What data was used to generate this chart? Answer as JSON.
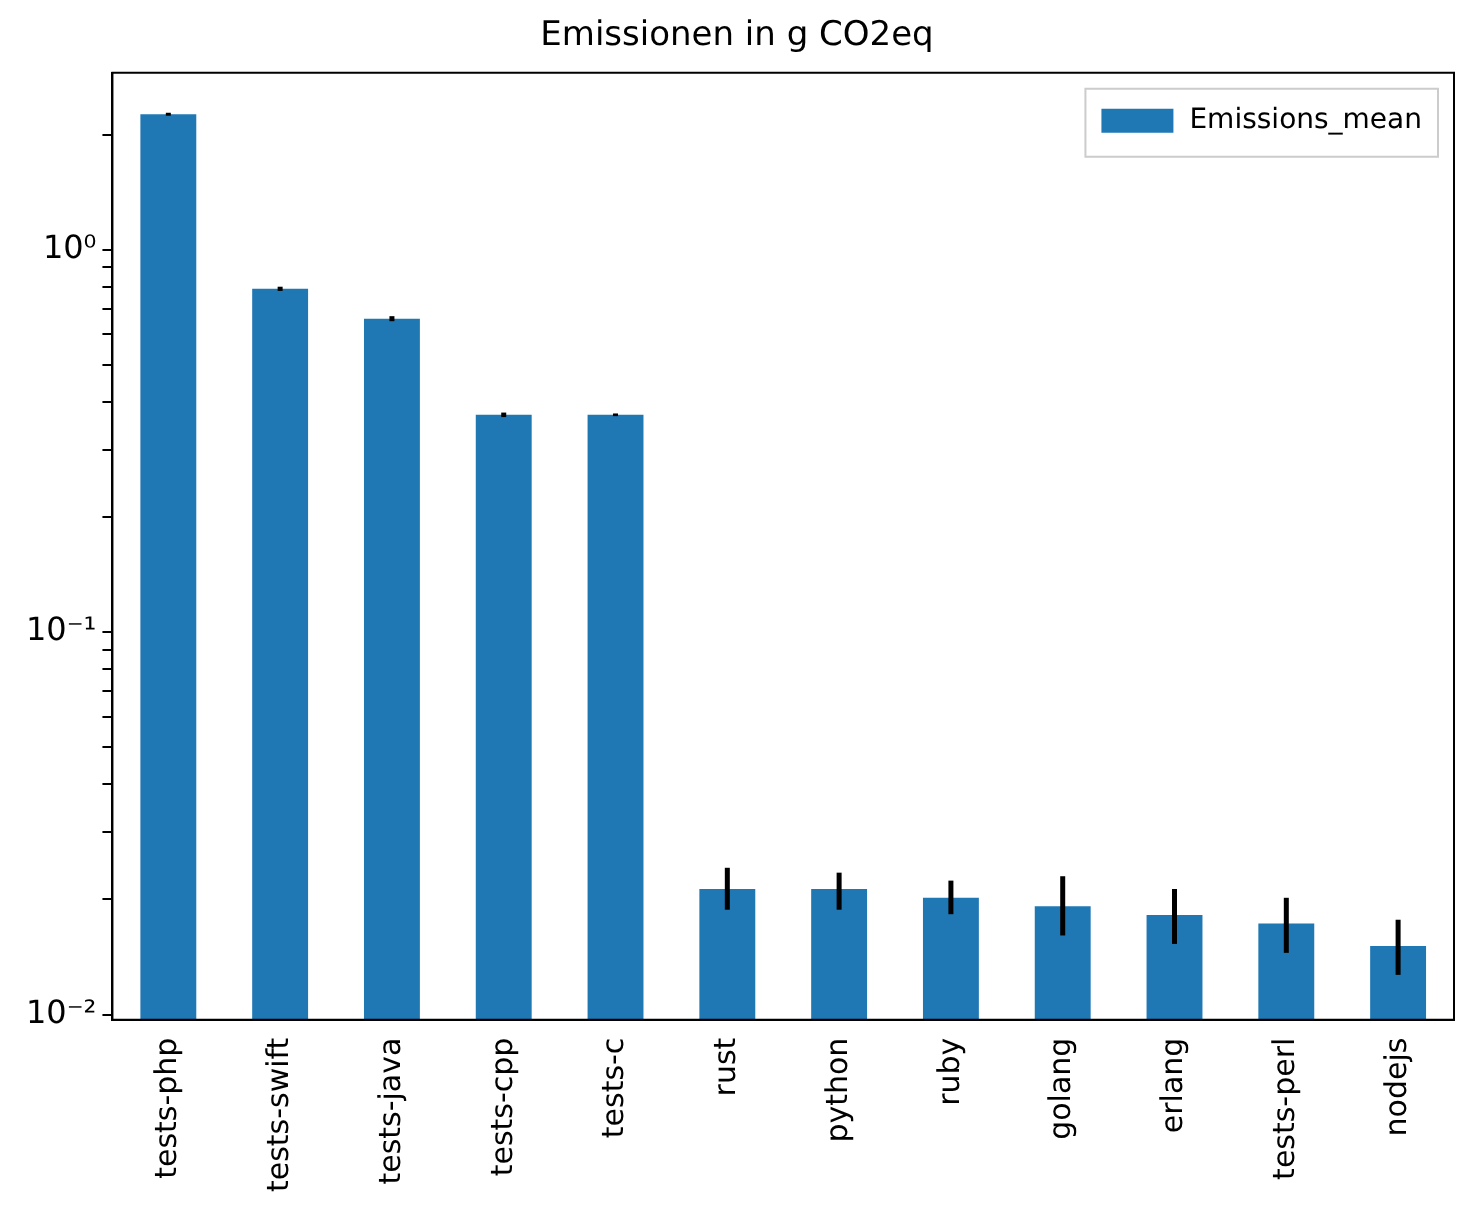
{
  "chart_data": {
    "type": "bar",
    "title": "Emissionen in g CO2eq",
    "categories": [
      "tests-php",
      "tests-swift",
      "tests-java",
      "tests-cpp",
      "tests-c",
      "rust",
      "python",
      "ruby",
      "golang",
      "erlang",
      "tests-perl",
      "nodejs"
    ],
    "series": [
      {
        "name": "Emissions_mean",
        "color": "#1f77b4",
        "values": [
          2.26,
          0.79,
          0.66,
          0.37,
          0.37,
          0.0213,
          0.0213,
          0.0202,
          0.0192,
          0.0182,
          0.0173,
          0.0151
        ],
        "errors": [
          [
            2.24,
            2.28
          ],
          [
            0.78,
            0.8
          ],
          [
            0.65,
            0.67
          ],
          [
            0.365,
            0.375
          ],
          [
            0.367,
            0.373
          ],
          [
            0.0188,
            0.0242
          ],
          [
            0.0188,
            0.0235
          ],
          [
            0.0183,
            0.0224
          ],
          [
            0.0161,
            0.023
          ],
          [
            0.0153,
            0.0213
          ],
          [
            0.0145,
            0.0202
          ],
          [
            0.0127,
            0.0177
          ]
        ]
      }
    ],
    "log": "y",
    "ylim": [
      0.0097,
      2.9
    ],
    "yticks": [
      {
        "value": 0.01,
        "label": "10⁻²"
      },
      {
        "value": 0.02,
        "label": null
      },
      {
        "value": 0.03,
        "label": null
      },
      {
        "value": 0.04,
        "label": null
      },
      {
        "value": 0.05,
        "label": null
      },
      {
        "value": 0.06,
        "label": null
      },
      {
        "value": 0.07,
        "label": null
      },
      {
        "value": 0.08,
        "label": null
      },
      {
        "value": 0.09,
        "label": null
      },
      {
        "value": 0.1,
        "label": "10⁻¹"
      },
      {
        "value": 0.2,
        "label": null
      },
      {
        "value": 0.3,
        "label": null
      },
      {
        "value": 0.4,
        "label": null
      },
      {
        "value": 0.5,
        "label": null
      },
      {
        "value": 0.6,
        "label": null
      },
      {
        "value": 0.7,
        "label": null
      },
      {
        "value": 0.8,
        "label": null
      },
      {
        "value": 0.9,
        "label": null
      },
      {
        "value": 1,
        "label": "10⁰"
      },
      {
        "value": 2,
        "label": null
      }
    ],
    "grid": false,
    "legend": "top right"
  }
}
